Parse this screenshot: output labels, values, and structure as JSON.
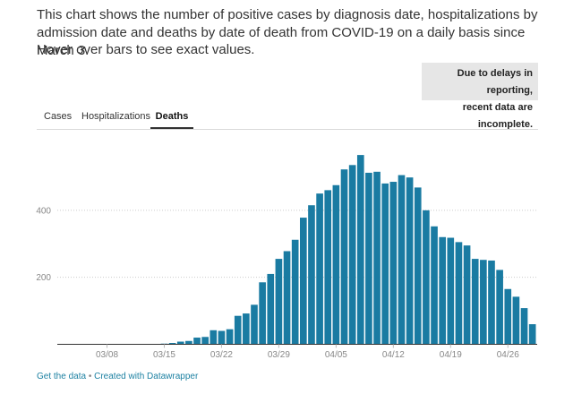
{
  "intro_text": "This chart shows the number of positive cases by diagnosis date, hospitalizations by admission date and deaths by date of death from COVID-19 on a daily basis since March 3.",
  "hover_text": "Hover over bars to see exact values.",
  "delay_note": {
    "line1": "Due to delays in reporting,",
    "line2": "recent data are incomplete."
  },
  "tabs": [
    {
      "label": "Cases",
      "active": false
    },
    {
      "label": "Hospitalizations",
      "active": false
    },
    {
      "label": "Deaths",
      "active": true
    }
  ],
  "footer": {
    "get_data": "Get the data",
    "separator": "•",
    "created_with": "Created with Datawrapper"
  },
  "colors": {
    "bar": "#1a7ba2",
    "grid": "#cccccc"
  },
  "chart_data": {
    "type": "bar",
    "x_tick_labels": [
      "03/08",
      "03/15",
      "03/22",
      "03/29",
      "04/05",
      "04/12",
      "04/19",
      "04/26"
    ],
    "y_tick_labels": [
      "200",
      "400"
    ],
    "ylim": [
      0,
      600
    ],
    "categories": [
      "03/03",
      "03/04",
      "03/05",
      "03/06",
      "03/07",
      "03/08",
      "03/09",
      "03/10",
      "03/11",
      "03/12",
      "03/13",
      "03/14",
      "03/15",
      "03/16",
      "03/17",
      "03/18",
      "03/19",
      "03/20",
      "03/21",
      "03/22",
      "03/23",
      "03/24",
      "03/25",
      "03/26",
      "03/27",
      "03/28",
      "03/29",
      "03/30",
      "03/31",
      "04/01",
      "04/02",
      "04/03",
      "04/04",
      "04/05",
      "04/06",
      "04/07",
      "04/08",
      "04/09",
      "04/10",
      "04/11",
      "04/12",
      "04/13",
      "04/14",
      "04/15",
      "04/16",
      "04/17",
      "04/18",
      "04/19",
      "04/20",
      "04/21",
      "04/22",
      "04/23",
      "04/24",
      "04/25",
      "04/26",
      "04/27",
      "04/28",
      "04/29"
    ],
    "values": [
      0,
      0,
      0,
      0,
      0,
      0,
      0,
      0,
      0,
      0,
      0,
      0,
      2,
      4,
      8,
      10,
      20,
      22,
      42,
      40,
      45,
      85,
      92,
      118,
      185,
      210,
      255,
      278,
      312,
      378,
      415,
      450,
      460,
      475,
      522,
      535,
      565,
      512,
      515,
      480,
      485,
      505,
      498,
      468,
      400,
      352,
      320,
      318,
      305,
      295,
      255,
      252,
      250,
      222,
      165,
      142,
      108,
      60
    ]
  },
  "chart_grid": true
}
